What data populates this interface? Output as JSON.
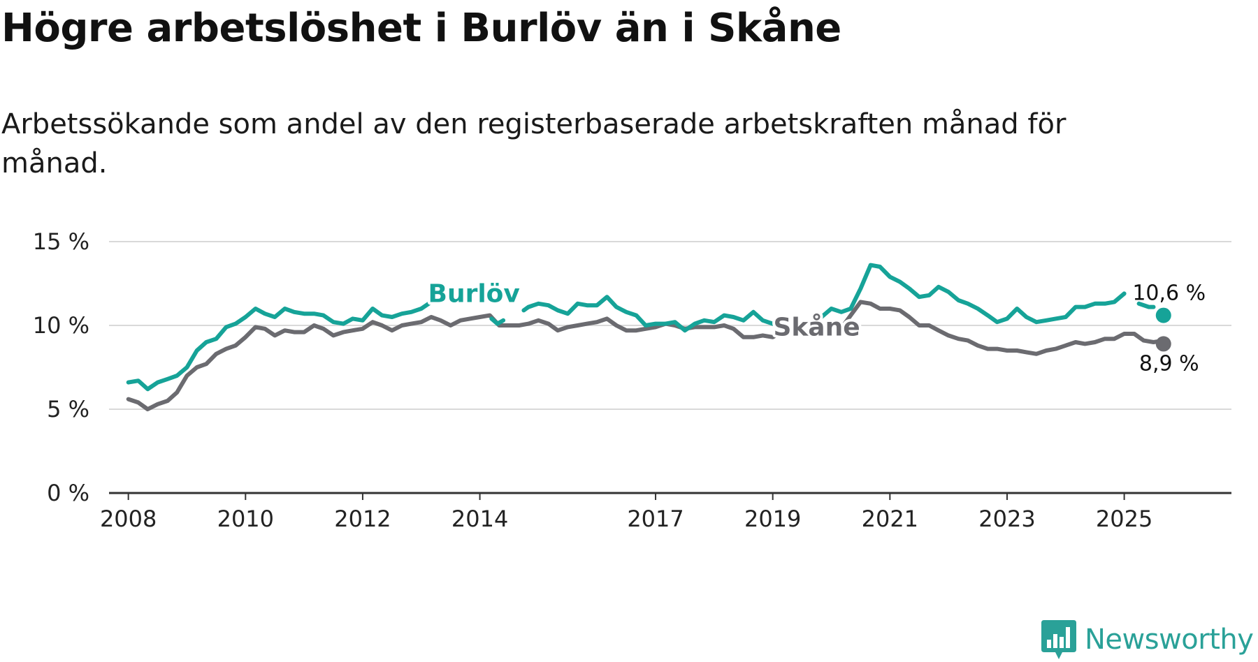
{
  "title": "Högre arbetslöshet i Burlöv än i Skåne",
  "subtitle": "Arbetssökande som andel av den registerbaserade arbetskraften månad för månad.",
  "brand": {
    "name": "Newsworthy",
    "color": "#2aa198",
    "icon": "newsworthy-bar-chart-icon"
  },
  "chart_data": {
    "type": "line",
    "title": "Högre arbetslöshet i Burlöv än i Skåne",
    "xlabel": "",
    "ylabel": "",
    "xlim": [
      2007.67,
      2026.83
    ],
    "ylim": [
      0,
      15
    ],
    "grid": true,
    "x_ticks": [
      {
        "value": 2008,
        "label": "2008"
      },
      {
        "value": 2010,
        "label": "2010"
      },
      {
        "value": 2012,
        "label": "2012"
      },
      {
        "value": 2014,
        "label": "2014"
      },
      {
        "value": 2017,
        "label": "2017"
      },
      {
        "value": 2019,
        "label": "2019"
      },
      {
        "value": 2021,
        "label": "2021"
      },
      {
        "value": 2023,
        "label": "2023"
      },
      {
        "value": 2025,
        "label": "2025"
      }
    ],
    "y_ticks": [
      {
        "value": 0,
        "label": "0 %"
      },
      {
        "value": 5,
        "label": "5 %"
      },
      {
        "value": 10,
        "label": "10 %"
      },
      {
        "value": 15,
        "label": "15 %"
      }
    ],
    "series": [
      {
        "name": "Burlöv",
        "color": "#16a398",
        "end_label": "10,6 %",
        "end_value": 10.6,
        "points": [
          [
            2008.0,
            6.6
          ],
          [
            2008.17,
            6.7
          ],
          [
            2008.33,
            6.2
          ],
          [
            2008.5,
            6.6
          ],
          [
            2008.67,
            6.8
          ],
          [
            2008.83,
            7.0
          ],
          [
            2009.0,
            7.5
          ],
          [
            2009.17,
            8.5
          ],
          [
            2009.33,
            9.0
          ],
          [
            2009.5,
            9.2
          ],
          [
            2009.67,
            9.9
          ],
          [
            2009.83,
            10.1
          ],
          [
            2010.0,
            10.5
          ],
          [
            2010.17,
            11.0
          ],
          [
            2010.33,
            10.7
          ],
          [
            2010.5,
            10.5
          ],
          [
            2010.67,
            11.0
          ],
          [
            2010.83,
            10.8
          ],
          [
            2011.0,
            10.7
          ],
          [
            2011.17,
            10.7
          ],
          [
            2011.33,
            10.6
          ],
          [
            2011.5,
            10.2
          ],
          [
            2011.67,
            10.1
          ],
          [
            2011.83,
            10.4
          ],
          [
            2012.0,
            10.3
          ],
          [
            2012.17,
            11.0
          ],
          [
            2012.33,
            10.6
          ],
          [
            2012.5,
            10.5
          ],
          [
            2012.67,
            10.7
          ],
          [
            2012.83,
            10.8
          ],
          [
            2013.0,
            11.0
          ],
          [
            2013.17,
            11.4
          ]
        ]
      },
      {
        "name": "Burlöv",
        "color": "#16a398",
        "points": [
          [
            2014.2,
            10.4
          ],
          [
            2014.3,
            10.1
          ],
          [
            2014.4,
            10.3
          ]
        ]
      },
      {
        "name": "Burlöv",
        "color": "#16a398",
        "points": [
          [
            2014.75,
            10.9
          ],
          [
            2014.83,
            11.1
          ],
          [
            2015.0,
            11.3
          ],
          [
            2015.17,
            11.2
          ],
          [
            2015.33,
            10.9
          ],
          [
            2015.5,
            10.7
          ],
          [
            2015.67,
            11.3
          ],
          [
            2015.83,
            11.2
          ],
          [
            2016.0,
            11.2
          ],
          [
            2016.17,
            11.7
          ],
          [
            2016.33,
            11.1
          ],
          [
            2016.5,
            10.8
          ],
          [
            2016.67,
            10.6
          ],
          [
            2016.83,
            10.0
          ],
          [
            2017.0,
            10.1
          ],
          [
            2017.17,
            10.1
          ],
          [
            2017.33,
            10.2
          ],
          [
            2017.5,
            9.7
          ],
          [
            2017.67,
            10.1
          ],
          [
            2017.83,
            10.3
          ],
          [
            2018.0,
            10.2
          ],
          [
            2018.17,
            10.6
          ],
          [
            2018.33,
            10.5
          ],
          [
            2018.5,
            10.3
          ],
          [
            2018.67,
            10.8
          ],
          [
            2018.83,
            10.3
          ],
          [
            2019.0,
            10.1
          ],
          [
            2019.1,
            10.0
          ]
        ]
      },
      {
        "name": "Burlöv",
        "color": "#16a398",
        "points": [
          [
            2019.8,
            10.4
          ],
          [
            2020.0,
            11.0
          ],
          [
            2020.17,
            10.8
          ],
          [
            2020.33,
            11.0
          ],
          [
            2020.5,
            12.2
          ],
          [
            2020.67,
            13.6
          ],
          [
            2020.83,
            13.5
          ],
          [
            2021.0,
            12.9
          ],
          [
            2021.17,
            12.6
          ],
          [
            2021.33,
            12.2
          ],
          [
            2021.5,
            11.7
          ],
          [
            2021.67,
            11.8
          ],
          [
            2021.83,
            12.3
          ],
          [
            2022.0,
            12.0
          ],
          [
            2022.17,
            11.5
          ],
          [
            2022.33,
            11.3
          ],
          [
            2022.5,
            11.0
          ],
          [
            2022.67,
            10.6
          ],
          [
            2022.83,
            10.2
          ],
          [
            2023.0,
            10.4
          ],
          [
            2023.17,
            11.0
          ],
          [
            2023.33,
            10.5
          ],
          [
            2023.5,
            10.2
          ],
          [
            2023.67,
            10.3
          ],
          [
            2023.83,
            10.4
          ],
          [
            2024.0,
            10.5
          ],
          [
            2024.17,
            11.1
          ],
          [
            2024.33,
            11.1
          ],
          [
            2024.5,
            11.3
          ],
          [
            2024.67,
            11.3
          ],
          [
            2024.83,
            11.4
          ],
          [
            2025.0,
            11.9
          ]
        ]
      },
      {
        "name": "Burlöv",
        "color": "#16a398",
        "points": [
          [
            2025.25,
            11.3
          ],
          [
            2025.42,
            11.1
          ],
          [
            2025.5,
            11.1
          ]
        ]
      },
      {
        "name": "Skåne",
        "color": "#6b6b70",
        "end_label": "8,9 %",
        "end_value": 8.9,
        "points": [
          [
            2008.0,
            5.6
          ],
          [
            2008.17,
            5.4
          ],
          [
            2008.33,
            5.0
          ],
          [
            2008.5,
            5.3
          ],
          [
            2008.67,
            5.5
          ],
          [
            2008.83,
            6.0
          ],
          [
            2009.0,
            7.0
          ],
          [
            2009.17,
            7.5
          ],
          [
            2009.33,
            7.7
          ],
          [
            2009.5,
            8.3
          ],
          [
            2009.67,
            8.6
          ],
          [
            2009.83,
            8.8
          ],
          [
            2010.0,
            9.3
          ],
          [
            2010.17,
            9.9
          ],
          [
            2010.33,
            9.8
          ],
          [
            2010.5,
            9.4
          ],
          [
            2010.67,
            9.7
          ],
          [
            2010.83,
            9.6
          ],
          [
            2011.0,
            9.6
          ],
          [
            2011.17,
            10.0
          ],
          [
            2011.33,
            9.8
          ],
          [
            2011.5,
            9.4
          ],
          [
            2011.67,
            9.6
          ],
          [
            2011.83,
            9.7
          ],
          [
            2012.0,
            9.8
          ],
          [
            2012.17,
            10.2
          ],
          [
            2012.33,
            10.0
          ],
          [
            2012.5,
            9.7
          ],
          [
            2012.67,
            10.0
          ],
          [
            2012.83,
            10.1
          ],
          [
            2013.0,
            10.2
          ],
          [
            2013.17,
            10.5
          ],
          [
            2013.33,
            10.3
          ],
          [
            2013.5,
            10.0
          ],
          [
            2013.67,
            10.3
          ],
          [
            2013.83,
            10.4
          ],
          [
            2014.0,
            10.5
          ],
          [
            2014.17,
            10.6
          ],
          [
            2014.33,
            10.0
          ],
          [
            2014.5,
            10.0
          ],
          [
            2014.67,
            10.0
          ],
          [
            2014.83,
            10.1
          ],
          [
            2015.0,
            10.3
          ],
          [
            2015.17,
            10.1
          ],
          [
            2015.33,
            9.7
          ],
          [
            2015.5,
            9.9
          ],
          [
            2015.67,
            10.0
          ],
          [
            2015.83,
            10.1
          ],
          [
            2016.0,
            10.2
          ],
          [
            2016.17,
            10.4
          ],
          [
            2016.33,
            10.0
          ],
          [
            2016.5,
            9.7
          ],
          [
            2016.67,
            9.7
          ],
          [
            2016.83,
            9.8
          ],
          [
            2017.0,
            9.9
          ],
          [
            2017.17,
            10.1
          ],
          [
            2017.33,
            10.0
          ],
          [
            2017.5,
            9.8
          ],
          [
            2017.67,
            9.9
          ],
          [
            2017.83,
            9.9
          ],
          [
            2018.0,
            9.9
          ],
          [
            2018.17,
            10.0
          ],
          [
            2018.33,
            9.8
          ],
          [
            2018.5,
            9.3
          ],
          [
            2018.67,
            9.3
          ],
          [
            2018.83,
            9.4
          ],
          [
            2019.0,
            9.3
          ],
          [
            2019.1,
            9.5
          ]
        ]
      },
      {
        "name": "Skåne",
        "color": "#6b6b70",
        "points": [
          [
            2020.1,
            9.5
          ],
          [
            2020.33,
            10.6
          ],
          [
            2020.5,
            11.4
          ],
          [
            2020.67,
            11.3
          ],
          [
            2020.83,
            11.0
          ],
          [
            2021.0,
            11.0
          ],
          [
            2021.17,
            10.9
          ],
          [
            2021.33,
            10.5
          ],
          [
            2021.5,
            10.0
          ],
          [
            2021.67,
            10.0
          ],
          [
            2021.83,
            9.7
          ],
          [
            2022.0,
            9.4
          ],
          [
            2022.17,
            9.2
          ],
          [
            2022.33,
            9.1
          ],
          [
            2022.5,
            8.8
          ],
          [
            2022.67,
            8.6
          ],
          [
            2022.83,
            8.6
          ],
          [
            2023.0,
            8.5
          ],
          [
            2023.17,
            8.5
          ],
          [
            2023.33,
            8.4
          ],
          [
            2023.5,
            8.3
          ],
          [
            2023.67,
            8.5
          ],
          [
            2023.83,
            8.6
          ],
          [
            2024.0,
            8.8
          ],
          [
            2024.17,
            9.0
          ],
          [
            2024.33,
            8.9
          ],
          [
            2024.5,
            9.0
          ],
          [
            2024.67,
            9.2
          ],
          [
            2024.83,
            9.2
          ],
          [
            2025.0,
            9.5
          ],
          [
            2025.17,
            9.5
          ],
          [
            2025.33,
            9.1
          ],
          [
            2025.5,
            9.0
          ],
          [
            2025.67,
            9.1
          ],
          [
            2025.75,
            8.9
          ]
        ]
      }
    ],
    "endpoints": [
      {
        "name": "Burlöv",
        "x": 2025.67,
        "value": 10.6,
        "label": "10,6 %",
        "color": "#16a398"
      },
      {
        "name": "Skåne",
        "x": 2025.67,
        "value": 8.9,
        "label": "8,9 %",
        "color": "#6b6b70"
      }
    ],
    "annotations": [
      {
        "text": "Burlöv",
        "x": 2013.9,
        "y": 11.4,
        "color": "#16a398"
      },
      {
        "text": "Skåne",
        "x": 2019.75,
        "y": 9.4,
        "color": "#6b6b70"
      }
    ]
  }
}
